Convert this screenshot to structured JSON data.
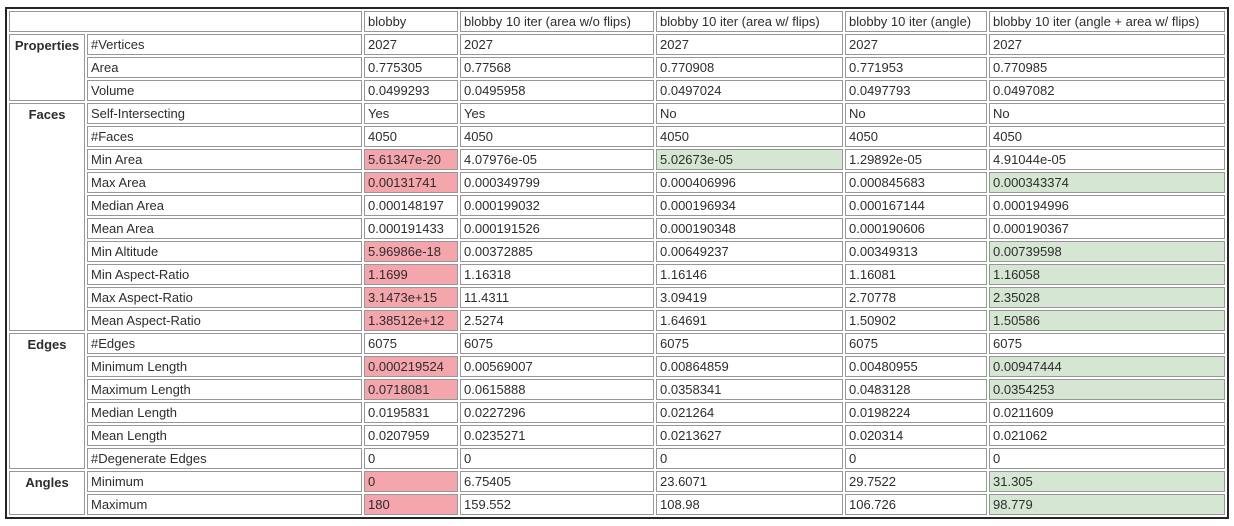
{
  "table": {
    "corner_label": "",
    "columns": [
      "blobby",
      "blobby 10 iter (area w/o flips)",
      "blobby 10 iter (area w/ flips)",
      "blobby 10 iter (angle)",
      "blobby 10 iter (angle + area w/ flips)"
    ],
    "colors": {
      "bad": "#f5a6ad",
      "good": "#d5e6d3"
    },
    "groups": [
      {
        "name": "Properties",
        "rows": [
          {
            "label": "#Vertices",
            "values": [
              "2027",
              "2027",
              "2027",
              "2027",
              "2027"
            ]
          },
          {
            "label": "Area",
            "values": [
              "0.775305",
              "0.77568",
              "0.770908",
              "0.771953",
              "0.770985"
            ]
          },
          {
            "label": "Volume",
            "values": [
              "0.0499293",
              "0.0495958",
              "0.0497024",
              "0.0497793",
              "0.0497082"
            ]
          }
        ]
      },
      {
        "name": "Faces",
        "rows": [
          {
            "label": "Self-Intersecting",
            "values": [
              "Yes",
              "Yes",
              "No",
              "No",
              "No"
            ]
          },
          {
            "label": "#Faces",
            "values": [
              "4050",
              "4050",
              "4050",
              "4050",
              "4050"
            ]
          },
          {
            "label": "Min Area",
            "values": [
              "5.61347e-20",
              "4.07976e-05",
              "5.02673e-05",
              "1.29892e-05",
              "4.91044e-05"
            ],
            "marks": [
              "bad",
              "",
              "good",
              "",
              ""
            ]
          },
          {
            "label": "Max Area",
            "values": [
              "0.00131741",
              "0.000349799",
              "0.000406996",
              "0.000845683",
              "0.000343374"
            ],
            "marks": [
              "bad",
              "",
              "",
              "",
              "good"
            ]
          },
          {
            "label": "Median Area",
            "values": [
              "0.000148197",
              "0.000199032",
              "0.000196934",
              "0.000167144",
              "0.000194996"
            ]
          },
          {
            "label": "Mean Area",
            "values": [
              "0.000191433",
              "0.000191526",
              "0.000190348",
              "0.000190606",
              "0.000190367"
            ]
          },
          {
            "label": "Min Altitude",
            "values": [
              "5.96986e-18",
              "0.00372885",
              "0.00649237",
              "0.00349313",
              "0.00739598"
            ],
            "marks": [
              "bad",
              "",
              "",
              "",
              "good"
            ]
          },
          {
            "label": "Min Aspect-Ratio",
            "values": [
              "1.1699",
              "1.16318",
              "1.16146",
              "1.16081",
              "1.16058"
            ],
            "marks": [
              "bad",
              "",
              "",
              "",
              "good"
            ]
          },
          {
            "label": "Max Aspect-Ratio",
            "values": [
              "3.1473e+15",
              "11.4311",
              "3.09419",
              "2.70778",
              "2.35028"
            ],
            "marks": [
              "bad",
              "",
              "",
              "",
              "good"
            ]
          },
          {
            "label": "Mean Aspect-Ratio",
            "values": [
              "1.38512e+12",
              "2.5274",
              "1.64691",
              "1.50902",
              "1.50586"
            ],
            "marks": [
              "bad",
              "",
              "",
              "",
              "good"
            ]
          }
        ]
      },
      {
        "name": "Edges",
        "rows": [
          {
            "label": "#Edges",
            "values": [
              "6075",
              "6075",
              "6075",
              "6075",
              "6075"
            ]
          },
          {
            "label": "Minimum Length",
            "values": [
              "0.000219524",
              "0.00569007",
              "0.00864859",
              "0.00480955",
              "0.00947444"
            ],
            "marks": [
              "bad",
              "",
              "",
              "",
              "good"
            ]
          },
          {
            "label": "Maximum Length",
            "values": [
              "0.0718081",
              "0.0615888",
              "0.0358341",
              "0.0483128",
              "0.0354253"
            ],
            "marks": [
              "bad",
              "",
              "",
              "",
              "good"
            ]
          },
          {
            "label": "Median Length",
            "values": [
              "0.0195831",
              "0.0227296",
              "0.021264",
              "0.0198224",
              "0.0211609"
            ]
          },
          {
            "label": "Mean Length",
            "values": [
              "0.0207959",
              "0.0235271",
              "0.0213627",
              "0.020314",
              "0.021062"
            ]
          },
          {
            "label": "#Degenerate Edges",
            "values": [
              "0",
              "0",
              "0",
              "0",
              "0"
            ]
          }
        ]
      },
      {
        "name": "Angles",
        "rows": [
          {
            "label": "Minimum",
            "values": [
              "0",
              "6.75405",
              "23.6071",
              "29.7522",
              "31.305"
            ],
            "marks": [
              "bad",
              "",
              "",
              "",
              "good"
            ]
          },
          {
            "label": "Maximum",
            "values": [
              "180",
              "159.552",
              "108.98",
              "106.726",
              "98.779"
            ],
            "marks": [
              "bad",
              "",
              "",
              "",
              "good"
            ]
          }
        ]
      }
    ]
  }
}
